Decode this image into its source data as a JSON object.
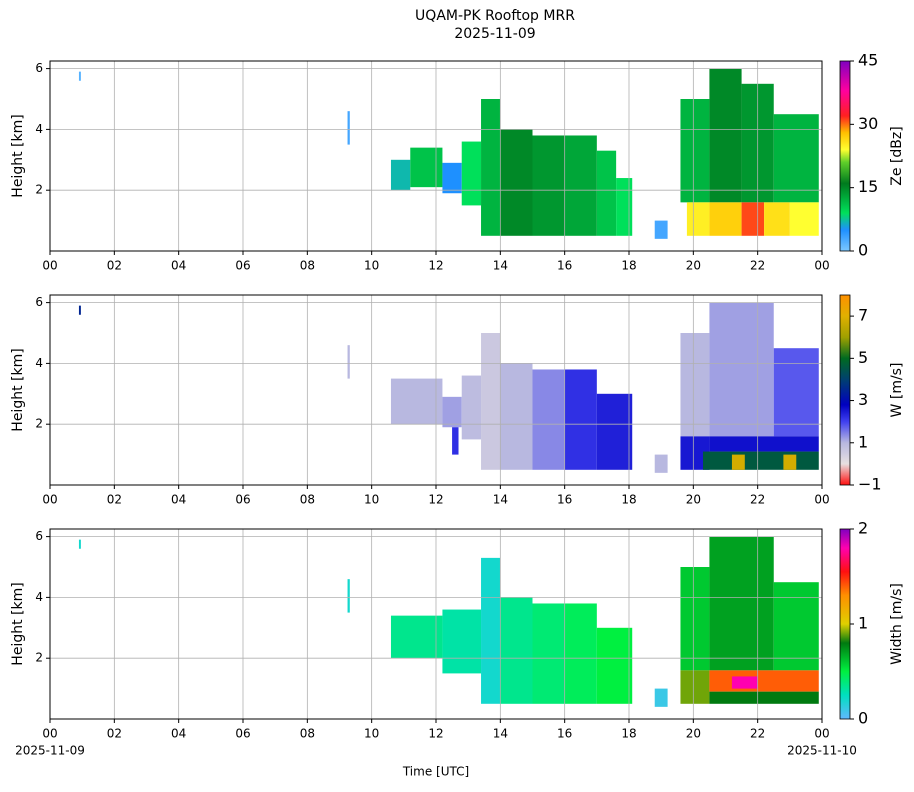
{
  "title": "UQAM-PK Rooftop MRR",
  "subtitle": "2025-11-09",
  "chart_data": [
    {
      "type": "heatmap",
      "ylabel": "Height [km]",
      "xlim": [
        0,
        24
      ],
      "ylim": [
        0,
        6.25
      ],
      "xticks": [
        {
          "value": 0,
          "label": "00"
        },
        {
          "value": 2,
          "label": "02"
        },
        {
          "value": 4,
          "label": "04"
        },
        {
          "value": 6,
          "label": "06"
        },
        {
          "value": 8,
          "label": "08"
        },
        10,
        12,
        14,
        16,
        18,
        20,
        22,
        {
          "value": 24,
          "label": "00"
        }
      ],
      "yticks": [
        2,
        4,
        6
      ],
      "grid": true,
      "colorbar_label": "Ze [dBz]",
      "clim": [
        0,
        45
      ],
      "cticks": [
        0,
        15,
        30,
        45
      ],
      "colormap": [
        [
          0,
          "#7cc8ff"
        ],
        [
          5,
          "#1e90ff"
        ],
        [
          9,
          "#00e05a"
        ],
        [
          16,
          "#007a1e"
        ],
        [
          21,
          "#5fcf2a"
        ],
        [
          24,
          "#ffff30"
        ],
        [
          28,
          "#ffc000"
        ],
        [
          32,
          "#ff2020"
        ],
        [
          38,
          "#ff00a0"
        ],
        [
          45,
          "#8000c0"
        ]
      ],
      "cells": [
        {
          "x": [
            0.9,
            0.96
          ],
          "y": [
            5.6,
            5.9
          ],
          "value": 2
        },
        {
          "x": [
            9.25,
            9.32
          ],
          "y": [
            3.5,
            4.6
          ],
          "value": 3
        },
        {
          "x": [
            10.6,
            11.2
          ],
          "y": [
            2.0,
            3.0
          ],
          "value": 7
        },
        {
          "x": [
            11.2,
            12.2
          ],
          "y": [
            2.1,
            3.4
          ],
          "value": 11
        },
        {
          "x": [
            12.2,
            12.8
          ],
          "y": [
            1.9,
            2.9
          ],
          "value": 5
        },
        {
          "x": [
            12.8,
            13.4
          ],
          "y": [
            1.5,
            3.6
          ],
          "value": 9
        },
        {
          "x": [
            13.4,
            14.0
          ],
          "y": [
            0.5,
            5.0
          ],
          "value": 12
        },
        {
          "x": [
            14.0,
            15.0
          ],
          "y": [
            0.5,
            4.0
          ],
          "value": 15
        },
        {
          "x": [
            15.0,
            16.0
          ],
          "y": [
            0.5,
            3.8
          ],
          "value": 14
        },
        {
          "x": [
            16.0,
            17.0
          ],
          "y": [
            0.5,
            3.8
          ],
          "value": 13
        },
        {
          "x": [
            17.0,
            17.6
          ],
          "y": [
            0.5,
            3.3
          ],
          "value": 11
        },
        {
          "x": [
            17.6,
            18.1
          ],
          "y": [
            0.5,
            2.4
          ],
          "value": 9
        },
        {
          "x": [
            18.8,
            19.2
          ],
          "y": [
            0.4,
            1.0
          ],
          "value": 3
        },
        {
          "x": [
            19.6,
            20.5
          ],
          "y": [
            1.6,
            5.0
          ],
          "value": 12
        },
        {
          "x": [
            20.5,
            21.5
          ],
          "y": [
            1.6,
            6.0
          ],
          "value": 15
        },
        {
          "x": [
            21.5,
            22.5
          ],
          "y": [
            1.6,
            5.5
          ],
          "value": 14
        },
        {
          "x": [
            22.5,
            23.9
          ],
          "y": [
            1.6,
            4.5
          ],
          "value": 12
        },
        {
          "x": [
            19.8,
            20.5
          ],
          "y": [
            0.5,
            1.6
          ],
          "value": 25
        },
        {
          "x": [
            20.5,
            21.5
          ],
          "y": [
            0.5,
            1.6
          ],
          "value": 27
        },
        {
          "x": [
            21.5,
            22.2
          ],
          "y": [
            0.5,
            1.6
          ],
          "value": 31
        },
        {
          "x": [
            22.2,
            23.0
          ],
          "y": [
            0.5,
            1.6
          ],
          "value": 26
        },
        {
          "x": [
            23.0,
            23.9
          ],
          "y": [
            0.5,
            1.6
          ],
          "value": 24
        }
      ]
    },
    {
      "type": "heatmap",
      "ylabel": "Height [km]",
      "xlim": [
        0,
        24
      ],
      "ylim": [
        0,
        6.25
      ],
      "xticks": [
        {
          "value": 0,
          "label": "00"
        },
        {
          "value": 2,
          "label": "02"
        },
        {
          "value": 4,
          "label": "04"
        },
        {
          "value": 6,
          "label": "06"
        },
        {
          "value": 8,
          "label": "08"
        },
        10,
        12,
        14,
        16,
        18,
        20,
        22,
        {
          "value": 24,
          "label": "00"
        }
      ],
      "yticks": [
        2,
        4,
        6
      ],
      "grid": true,
      "colorbar_label": "W [m/s]",
      "clim": [
        -1,
        8
      ],
      "cticks": [
        {
          "value": -1,
          "label": "−1"
        },
        1,
        3,
        5,
        7
      ],
      "colormap": [
        [
          -1,
          "#ff1010"
        ],
        [
          0,
          "#e8e0e0"
        ],
        [
          1,
          "#b8b8e0"
        ],
        [
          2,
          "#4040f0"
        ],
        [
          2.8,
          "#0000c0"
        ],
        [
          4,
          "#004070"
        ],
        [
          5,
          "#006a20"
        ],
        [
          6,
          "#a0a000"
        ],
        [
          7,
          "#e0b000"
        ],
        [
          8,
          "#ff9000"
        ]
      ],
      "cells": [
        {
          "x": [
            0.9,
            0.96
          ],
          "y": [
            5.6,
            5.9
          ],
          "value": 3.5
        },
        {
          "x": [
            9.25,
            9.32
          ],
          "y": [
            3.5,
            4.6
          ],
          "value": 1
        },
        {
          "x": [
            10.6,
            12.2
          ],
          "y": [
            2.0,
            3.5
          ],
          "value": 1
        },
        {
          "x": [
            12.2,
            12.8
          ],
          "y": [
            1.9,
            2.9
          ],
          "value": 1.2
        },
        {
          "x": [
            12.5,
            12.7
          ],
          "y": [
            1.0,
            1.9
          ],
          "value": 2.2
        },
        {
          "x": [
            12.8,
            13.4
          ],
          "y": [
            1.5,
            3.6
          ],
          "value": 0.9
        },
        {
          "x": [
            13.4,
            14.0
          ],
          "y": [
            0.5,
            5.0
          ],
          "value": 0.6
        },
        {
          "x": [
            14.0,
            15.0
          ],
          "y": [
            0.5,
            4.0
          ],
          "value": 1
        },
        {
          "x": [
            15.0,
            16.0
          ],
          "y": [
            0.5,
            3.8
          ],
          "value": 1.4
        },
        {
          "x": [
            16.0,
            17.0
          ],
          "y": [
            0.5,
            3.8
          ],
          "value": 2.2
        },
        {
          "x": [
            17.0,
            18.1
          ],
          "y": [
            0.5,
            3.0
          ],
          "value": 2.4
        },
        {
          "x": [
            18.8,
            19.2
          ],
          "y": [
            0.4,
            1.0
          ],
          "value": 1
        },
        {
          "x": [
            19.6,
            20.5
          ],
          "y": [
            1.6,
            5.0
          ],
          "value": 1
        },
        {
          "x": [
            20.5,
            22.5
          ],
          "y": [
            1.6,
            6.0
          ],
          "value": 1.2
        },
        {
          "x": [
            22.5,
            23.9
          ],
          "y": [
            1.6,
            4.5
          ],
          "value": 1.8
        },
        {
          "x": [
            19.6,
            20.5
          ],
          "y": [
            0.5,
            1.6
          ],
          "value": 2.5
        },
        {
          "x": [
            20.5,
            23.9
          ],
          "y": [
            1.1,
            1.6
          ],
          "value": 2.6
        },
        {
          "x": [
            20.3,
            23.9
          ],
          "y": [
            0.5,
            1.1
          ],
          "value": 4.6
        },
        {
          "x": [
            21.2,
            21.6
          ],
          "y": [
            0.5,
            1.0
          ],
          "value": 6.8
        },
        {
          "x": [
            22.8,
            23.2
          ],
          "y": [
            0.5,
            1.0
          ],
          "value": 6.8
        }
      ]
    },
    {
      "type": "heatmap",
      "ylabel": "Height [km]",
      "xlabel": "Time [UTC]",
      "xlim": [
        0,
        24
      ],
      "ylim": [
        0,
        6.25
      ],
      "xticks": [
        {
          "value": 0,
          "label": "00"
        },
        {
          "value": 2,
          "label": "02"
        },
        {
          "value": 4,
          "label": "04"
        },
        {
          "value": 6,
          "label": "06"
        },
        {
          "value": 8,
          "label": "08"
        },
        10,
        12,
        14,
        16,
        18,
        20,
        22,
        {
          "value": 24,
          "label": "00"
        }
      ],
      "date_labels": [
        {
          "value": 0,
          "label": "2025-11-09"
        },
        {
          "value": 24,
          "label": "2025-11-10"
        }
      ],
      "yticks": [
        2,
        4,
        6
      ],
      "grid": true,
      "colorbar_label": "Width [m/s]",
      "clim": [
        0,
        2
      ],
      "cticks": [
        0,
        1,
        2
      ],
      "colormap": [
        [
          0,
          "#60b8ff"
        ],
        [
          0.25,
          "#00e0c0"
        ],
        [
          0.5,
          "#00f040"
        ],
        [
          0.8,
          "#007a10"
        ],
        [
          1,
          "#e0d000"
        ],
        [
          1.3,
          "#ff9000"
        ],
        [
          1.55,
          "#ff1010"
        ],
        [
          1.8,
          "#ff00b0"
        ],
        [
          2,
          "#8000c0"
        ]
      ],
      "cells": [
        {
          "x": [
            0.9,
            0.96
          ],
          "y": [
            5.6,
            5.9
          ],
          "value": 0.2
        },
        {
          "x": [
            9.25,
            9.32
          ],
          "y": [
            3.5,
            4.6
          ],
          "value": 0.2
        },
        {
          "x": [
            10.6,
            12.2
          ],
          "y": [
            2.0,
            3.4
          ],
          "value": 0.35
        },
        {
          "x": [
            12.2,
            13.4
          ],
          "y": [
            1.5,
            3.6
          ],
          "value": 0.3
        },
        {
          "x": [
            13.4,
            14.0
          ],
          "y": [
            0.5,
            5.3
          ],
          "value": 0.2
        },
        {
          "x": [
            14.0,
            15.0
          ],
          "y": [
            0.5,
            4.0
          ],
          "value": 0.35
        },
        {
          "x": [
            15.0,
            16.0
          ],
          "y": [
            0.5,
            3.8
          ],
          "value": 0.4
        },
        {
          "x": [
            16.0,
            17.0
          ],
          "y": [
            0.5,
            3.8
          ],
          "value": 0.45
        },
        {
          "x": [
            17.0,
            18.1
          ],
          "y": [
            0.5,
            3.0
          ],
          "value": 0.5
        },
        {
          "x": [
            18.8,
            19.2
          ],
          "y": [
            0.4,
            1.0
          ],
          "value": 0.1
        },
        {
          "x": [
            19.6,
            20.5
          ],
          "y": [
            1.6,
            5.0
          ],
          "value": 0.6
        },
        {
          "x": [
            20.5,
            22.5
          ],
          "y": [
            1.6,
            6.0
          ],
          "value": 0.7
        },
        {
          "x": [
            22.5,
            23.9
          ],
          "y": [
            1.6,
            4.5
          ],
          "value": 0.6
        },
        {
          "x": [
            19.6,
            20.5
          ],
          "y": [
            0.5,
            1.6
          ],
          "value": 0.9
        },
        {
          "x": [
            20.5,
            23.9
          ],
          "y": [
            0.9,
            1.6
          ],
          "value": 1.4
        },
        {
          "x": [
            20.5,
            23.9
          ],
          "y": [
            0.5,
            0.9
          ],
          "value": 0.8
        },
        {
          "x": [
            21.2,
            22.0
          ],
          "y": [
            1.0,
            1.4
          ],
          "value": 1.8
        }
      ]
    }
  ]
}
